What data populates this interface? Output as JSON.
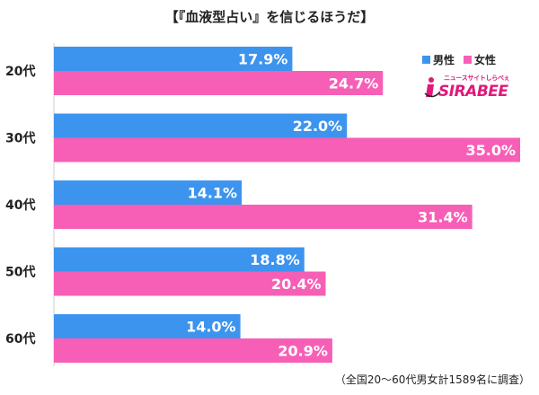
{
  "chart_data": {
    "type": "bar",
    "orientation": "horizontal",
    "title": "【『血液型占い』を信じるほうだ】",
    "categories": [
      "20代",
      "30代",
      "40代",
      "50代",
      "60代"
    ],
    "series": [
      {
        "name": "男性",
        "values": [
          17.9,
          22.0,
          14.1,
          18.8,
          14.0
        ],
        "color": "#3d94ee"
      },
      {
        "name": "女性",
        "values": [
          24.7,
          35.0,
          31.4,
          20.4,
          20.9
        ],
        "color": "#f75fb6"
      }
    ],
    "value_suffix": "%",
    "xlim": [
      0,
      35.0
    ],
    "legend_position": "top-right",
    "grid": false
  },
  "logo": {
    "tagline": "ニュースサイトしらべぇ",
    "text": "SIRABEE",
    "color": "#e0197a"
  },
  "source_note": "（全国20～60代男女計1589名に調査）"
}
